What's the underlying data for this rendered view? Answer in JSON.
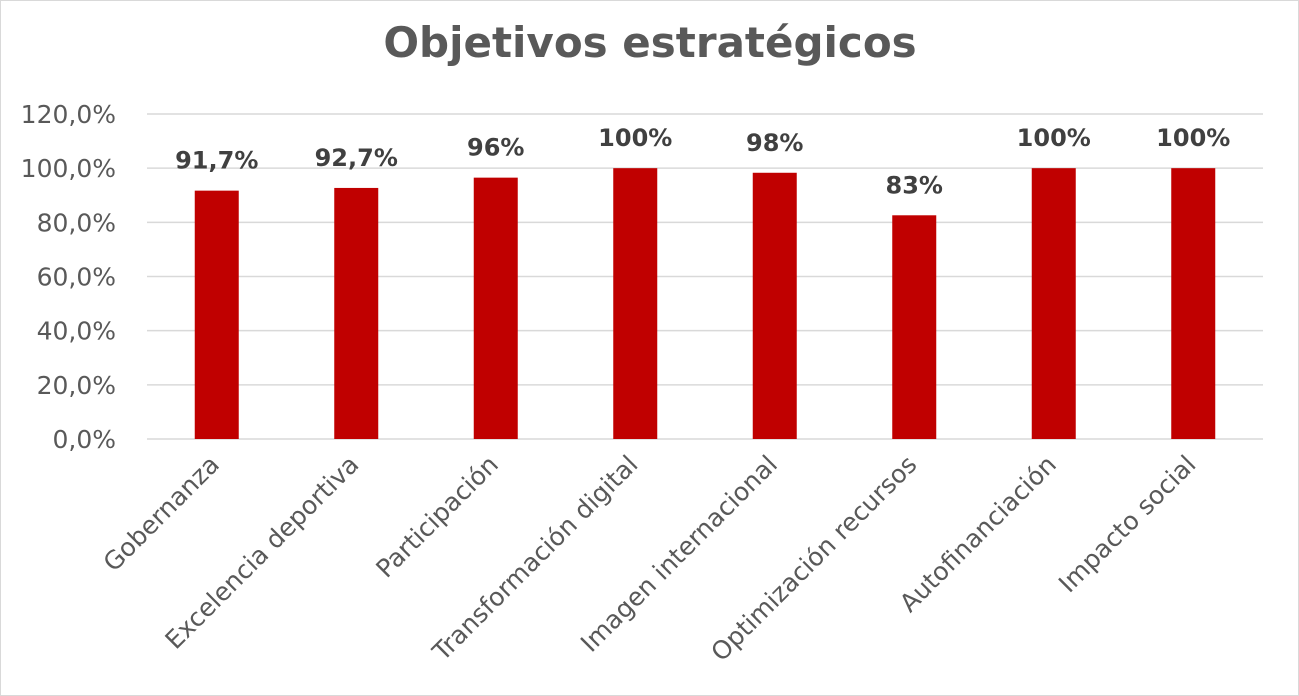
{
  "chart_data": {
    "type": "bar",
    "title": "Objetivos estratégicos",
    "xlabel": "",
    "ylabel": "",
    "categories": [
      "Gobernanza",
      "Excelencia deportiva",
      "Participación",
      "Transformación digital",
      "Imagen internacional",
      "Optimización recursos",
      "Autofinanciación",
      "Impacto social"
    ],
    "values": [
      91.7,
      92.7,
      96.5,
      100,
      98.3,
      82.6,
      100,
      100
    ],
    "data_labels": [
      "91,7%",
      "92,7%",
      "96%",
      "100%",
      "98%",
      "83%",
      "100%",
      "100%"
    ],
    "ylim": [
      0,
      120
    ],
    "yticks": [
      0,
      20,
      40,
      60,
      80,
      100,
      120
    ],
    "ytick_labels": [
      "0,0%",
      "20,0%",
      "40,0%",
      "60,0%",
      "80,0%",
      "100,0%",
      "120,0%"
    ],
    "grid": true,
    "legend": "none",
    "bar_color": "#c00000"
  }
}
